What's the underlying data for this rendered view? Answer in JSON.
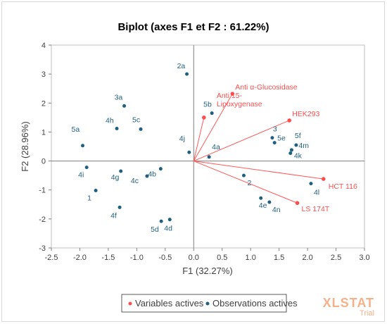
{
  "chart_data": {
    "type": "scatter",
    "title": "Biplot (axes F1 et F2 : 61.22%)",
    "xlabel": "F1 (32.27%)",
    "ylabel": "F2 (28.96%)",
    "xlim": [
      -2.5,
      3.0
    ],
    "ylim": [
      -3,
      4
    ],
    "x_ticks": [
      "-2.5",
      "-2.0",
      "-1.5",
      "-1.0",
      "-0.5",
      "0.0",
      "0.5",
      "1.0",
      "1.5",
      "2.0",
      "2.5",
      "3.0"
    ],
    "y_ticks": [
      "-3",
      "-2",
      "-1",
      "0",
      "1",
      "2",
      "3",
      "4"
    ],
    "grid": false,
    "legend_position": "bottom",
    "legend": [
      {
        "label": "Variables actives",
        "color": "#ff4d4d"
      },
      {
        "label": "Observations actives",
        "color": "#1f5f7f"
      }
    ],
    "variables": [
      {
        "label": "Anti α-Glucosidase",
        "x": 0.68,
        "y": 2.32
      },
      {
        "label": "Anti 15-\nLipoxygenase",
        "x": 0.18,
        "y": 1.5
      },
      {
        "label": "HEK293",
        "x": 1.68,
        "y": 1.4
      },
      {
        "label": "HCT 116",
        "x": 2.28,
        "y": -0.62
      },
      {
        "label": "LS 174T",
        "x": 1.82,
        "y": -1.45
      }
    ],
    "observations": [
      {
        "label": "2a",
        "x": -0.12,
        "y": 3.0
      },
      {
        "label": "3a",
        "x": -1.22,
        "y": 1.9
      },
      {
        "label": "5b",
        "x": 0.32,
        "y": 1.65
      },
      {
        "label": "4h",
        "x": -1.35,
        "y": 1.12
      },
      {
        "label": "5c",
        "x": -0.93,
        "y": 1.1
      },
      {
        "label": "5a",
        "x": -1.95,
        "y": 0.53
      },
      {
        "label": "4j",
        "x": -0.08,
        "y": 0.3
      },
      {
        "label": "4a",
        "x": 0.27,
        "y": 0.14
      },
      {
        "label": "3",
        "x": 1.38,
        "y": 0.8
      },
      {
        "label": "5e",
        "x": 1.42,
        "y": 0.63
      },
      {
        "label": "5f",
        "x": 1.8,
        "y": 0.55
      },
      {
        "label": "4m",
        "x": 1.72,
        "y": 0.38
      },
      {
        "label": "4k",
        "x": 1.7,
        "y": 0.27
      },
      {
        "label": "4i",
        "x": -1.88,
        "y": -0.22
      },
      {
        "label": "4g",
        "x": -1.28,
        "y": -0.35
      },
      {
        "label": "4b",
        "x": -0.58,
        "y": -0.27
      },
      {
        "label": "4c",
        "x": -0.82,
        "y": -0.52
      },
      {
        "label": "2",
        "x": 0.88,
        "y": -0.5
      },
      {
        "label": "1",
        "x": -1.72,
        "y": -1.02
      },
      {
        "label": "4l",
        "x": 2.06,
        "y": -0.78
      },
      {
        "label": "4e",
        "x": 1.18,
        "y": -1.28
      },
      {
        "label": "4n",
        "x": 1.33,
        "y": -1.42
      },
      {
        "label": "4f",
        "x": -1.3,
        "y": -1.6
      },
      {
        "label": "5d",
        "x": -0.57,
        "y": -2.08
      },
      {
        "label": "4d",
        "x": -0.42,
        "y": -2.02
      }
    ]
  },
  "watermark": {
    "brand": "XLSTAT",
    "sub": "Trial"
  }
}
